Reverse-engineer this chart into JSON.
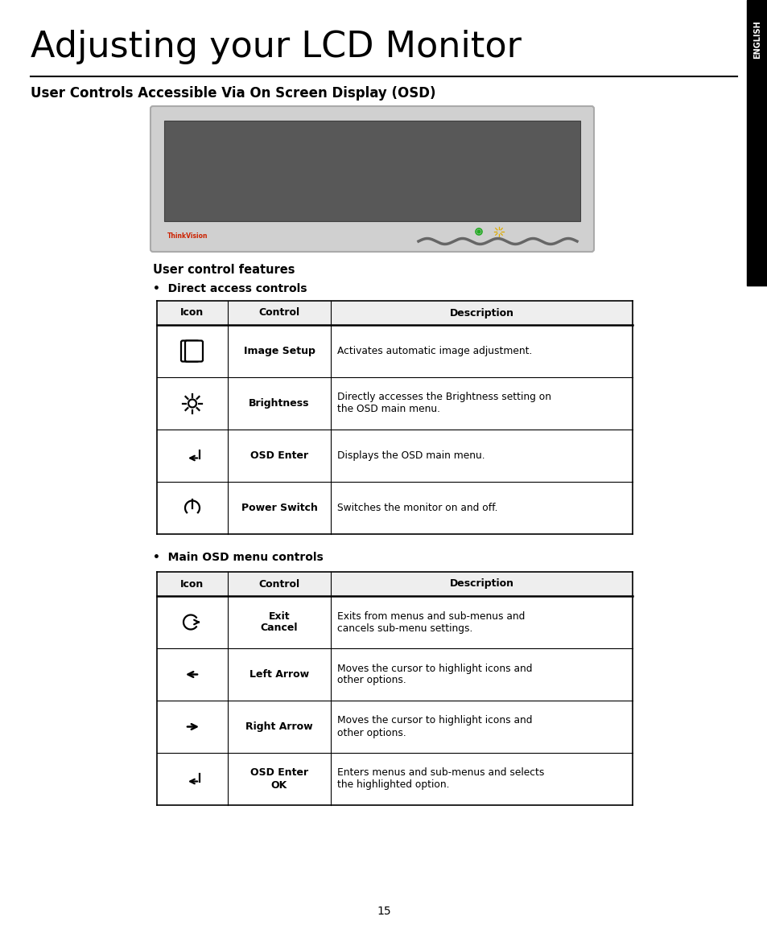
{
  "title": "Adjusting your LCD Monitor",
  "section_title": "User Controls Accessible Via On Screen Display (OSD)",
  "bg_color": "#ffffff",
  "tab_label": "ENGLISH",
  "user_control_features": "User control features",
  "direct_access_label": "Direct access controls",
  "main_osd_label": "Main OSD menu controls",
  "table1_headers": [
    "Icon",
    "Control",
    "Description"
  ],
  "table1_rows": [
    [
      "image_setup",
      "Image Setup",
      "Activates automatic image adjustment."
    ],
    [
      "brightness",
      "Brightness",
      "Directly accesses the Brightness setting on\nthe OSD main menu."
    ],
    [
      "osd_enter",
      "OSD Enter",
      "Displays the OSD main menu."
    ],
    [
      "power_switch",
      "Power Switch",
      "Switches the monitor on and off."
    ]
  ],
  "table2_headers": [
    "Icon",
    "Control",
    "Description"
  ],
  "table2_rows": [
    [
      "exit_cancel",
      "Exit\nCancel",
      "Exits from menus and sub-menus and\ncancels sub-menu settings."
    ],
    [
      "left_arrow",
      "Left Arrow",
      "Moves the cursor to highlight icons and\nother options."
    ],
    [
      "right_arrow",
      "Right Arrow",
      "Moves the cursor to highlight icons and\nother options."
    ],
    [
      "osd_enter_ok",
      "OSD Enter\nOK",
      "Enters menus and sub-menus and selects\nthe highlighted option."
    ]
  ],
  "page_number": "15",
  "thinkvision_color": "#cc2200",
  "monitor_screen_color": "#585858",
  "monitor_bezel_color": "#d0d0d0",
  "monitor_bezel_edge": "#aaaaaa"
}
